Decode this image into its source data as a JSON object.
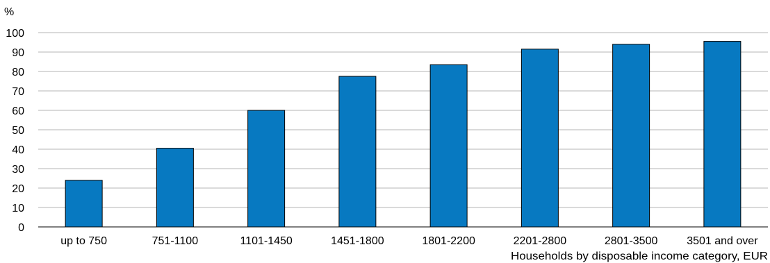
{
  "chart_data": {
    "type": "bar",
    "title": "",
    "ylabel": "%",
    "xlabel": "Households by disposable income category, EUR",
    "categories": [
      "up to 750",
      "751-1100",
      "1101-1450",
      "1451-1800",
      "1801-2200",
      "2201-2800",
      "2801-3500",
      "3501 and over"
    ],
    "values": [
      24,
      40.5,
      60,
      77.5,
      83.5,
      91.5,
      94,
      95.5
    ],
    "ylim": [
      0,
      100
    ],
    "yticks": [
      "0",
      "10",
      "20",
      "30",
      "40",
      "50",
      "60",
      "70",
      "80",
      "90",
      "100"
    ],
    "grid": true,
    "legend": "none",
    "bar_color": "#0779C1",
    "bar_edge_color": "#000000",
    "grid_color": "#B5B5B5"
  }
}
